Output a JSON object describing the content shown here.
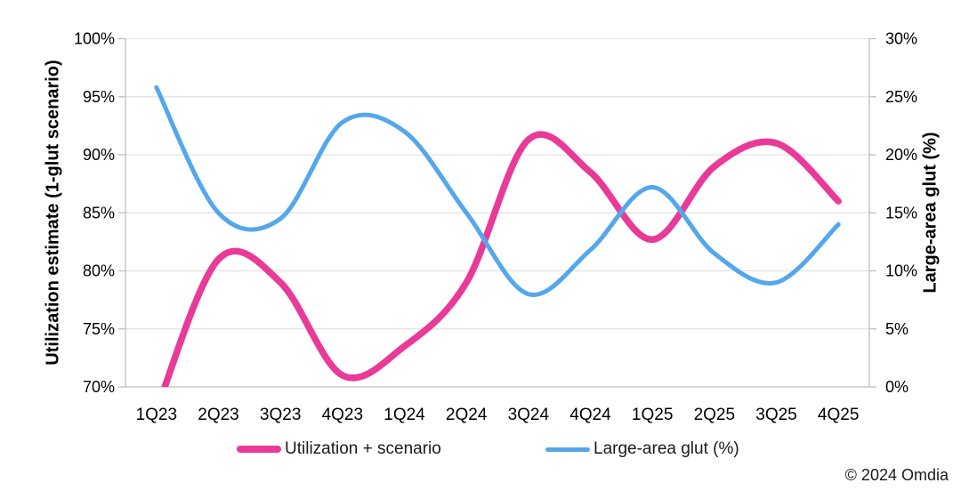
{
  "chart_data": {
    "type": "line",
    "smooth": true,
    "grid": "horizontal",
    "legend_position": "bottom",
    "categories": [
      "1Q23",
      "2Q23",
      "3Q23",
      "4Q23",
      "1Q24",
      "2Q24",
      "3Q24",
      "4Q24",
      "1Q25",
      "2Q25",
      "3Q25",
      "4Q25"
    ],
    "series": [
      {
        "name": "Utilization + scenario",
        "axis": "left",
        "color": "#E93A97",
        "stroke_width": 7.5,
        "values": [
          68,
          81,
          79,
          71,
          73.5,
          79,
          91.3,
          88.5,
          82.7,
          89,
          91,
          86
        ]
      },
      {
        "name": "Large-area glut (%)",
        "axis": "right",
        "color": "#54A7EC",
        "stroke_width": 5,
        "values": [
          25.8,
          15,
          14.5,
          22.8,
          22,
          15,
          8,
          11.8,
          17.2,
          11.5,
          9,
          14
        ]
      }
    ],
    "left_axis": {
      "title": "Utilization estimate (1-glut scenario)",
      "min": 70,
      "max": 100,
      "step": 5,
      "tick_labels": [
        "70%",
        "75%",
        "80%",
        "85%",
        "90%",
        "95%",
        "100%"
      ]
    },
    "right_axis": {
      "title": "Large-area glut (%)",
      "min": 0,
      "max": 30,
      "step": 5,
      "tick_labels": [
        "0%",
        "5%",
        "10%",
        "15%",
        "20%",
        "25%",
        "30%"
      ]
    }
  },
  "colors": {
    "utilization_line": "#E93A97",
    "glut_line": "#54A7EC",
    "gridline": "#E3E3E3",
    "axis_line": "#BFBFBF",
    "text": "#000000"
  },
  "footer": {
    "copyright": "© 2024 Omdia"
  }
}
